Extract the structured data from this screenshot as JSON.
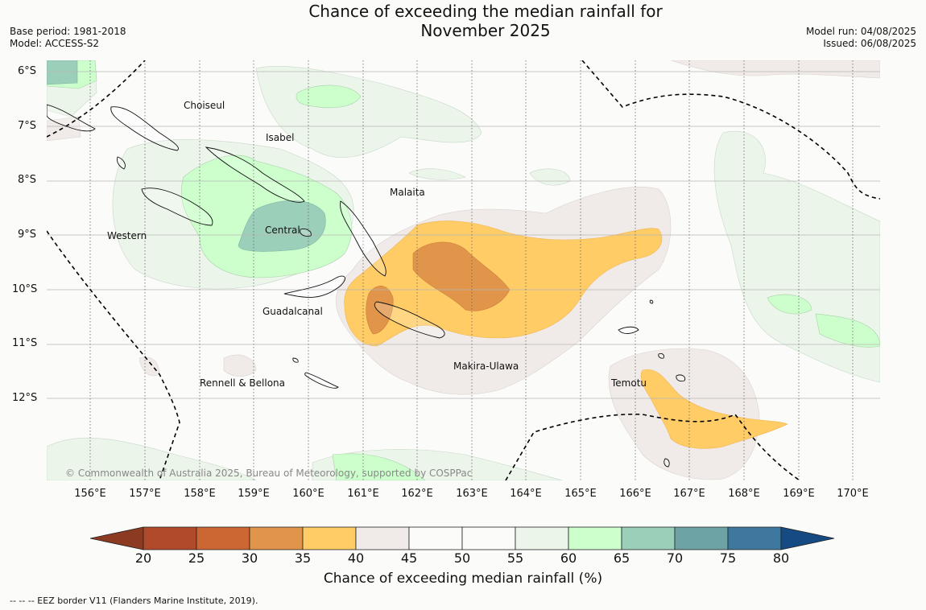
{
  "title_line1": "Chance of exceeding the median rainfall for",
  "title_line2": "November 2025",
  "meta_left": {
    "base_period": "Base period: 1981-2018",
    "model": "Model: ACCESS-S2"
  },
  "meta_right": {
    "model_run": "Model run: 04/08/2025",
    "issued": "Issued: 06/08/2025"
  },
  "latitude_labels": [
    "6°S",
    "7°S",
    "8°S",
    "9°S",
    "10°S",
    "11°S",
    "12°S"
  ],
  "longitude_labels": [
    "156°E",
    "157°E",
    "158°E",
    "159°E",
    "160°E",
    "161°E",
    "162°E",
    "163°E",
    "164°E",
    "165°E",
    "166°E",
    "167°E",
    "168°E",
    "169°E",
    "170°E"
  ],
  "place_labels": {
    "choiseul": "Choiseul",
    "isabel": "Isabel",
    "malaita": "Malaita",
    "central": "Central",
    "western": "Western",
    "guadalcanal": "Guadalcanal",
    "makira": "Makira-Ulawa",
    "temotu": "Temotu",
    "rennell": "Rennell & Bellona"
  },
  "copyright": "© Commonwealth of Australia 2025, Bureau of Meteorology, supported by COSPPac",
  "colorbar": {
    "title": "Chance of exceeding median rainfall (%)",
    "ticks": [
      "20",
      "25",
      "30",
      "35",
      "40",
      "45",
      "50",
      "55",
      "60",
      "65",
      "70",
      "75",
      "80"
    ],
    "colors": [
      "#b04a2a",
      "#cc6633",
      "#e0954b",
      "#ffcc66",
      "#f0ebe8",
      "#fbfcfa",
      "#fbfcfa",
      "#ebf5ea",
      "#ccffcc",
      "#9ccfba",
      "#6ea3a6",
      "#3f789f"
    ],
    "under_color": "#8c3a22",
    "over_color": "#164a82"
  },
  "footnote": "--  --  -- EEZ border V11 (Flanders Marine Institute, 2019)."
}
